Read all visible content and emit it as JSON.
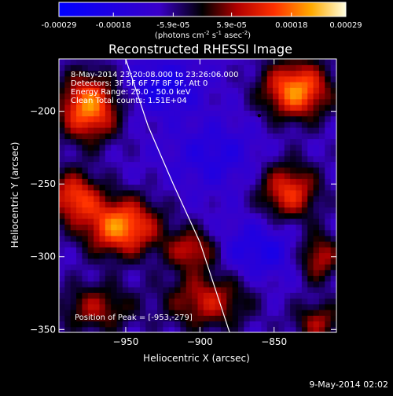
{
  "colorbar": {
    "ticks": [
      "-0.00029",
      "-0.00018",
      "-5.9e-05",
      "5.9e-05",
      "0.00018",
      "0.00029"
    ],
    "tick_values": [
      -0.00029,
      -0.00018,
      -5.9e-05,
      5.9e-05,
      0.00018,
      0.00029
    ],
    "units_main": "(photons cm",
    "units_sup1": "-2",
    "units_s": " s",
    "units_sup2": "-1",
    "units_asec": " asec",
    "units_sup3": "-2",
    "units_close": ")"
  },
  "chart_data": {
    "type": "heatmap",
    "title": "Reconstructed RHESSI Image",
    "xlabel": "Heliocentric X (arcsec)",
    "ylabel": "Heliocentric Y (arcsec)",
    "xlim": [
      -995,
      -808
    ],
    "ylim": [
      -352,
      -164
    ],
    "x_ticks": [
      -950,
      -900,
      -850
    ],
    "y_ticks": [
      -200,
      -250,
      -300,
      -350
    ],
    "annotations": [
      "8-May-2014 23:20:08.000 to 23:26:06.000",
      "Detectors: 3F 5F 6F 7F 8F 9F, Att 0",
      "Energy Range: 25.0 - 50.0 keV",
      "Clean    Total counts: 1.51E+04"
    ],
    "peak_label": "Position of Peak = [-953,-279]",
    "peak": {
      "x": -953,
      "y": -279
    },
    "limb_curve": [
      [
        -950,
        -164
      ],
      [
        -935,
        -210
      ],
      [
        -918,
        -250
      ],
      [
        -900,
        -290
      ],
      [
        -880,
        -352
      ]
    ],
    "sources": [
      {
        "x": -975,
        "y": -197,
        "intensity": 0.00029,
        "sx": 14,
        "sy": 16
      },
      {
        "x": -835,
        "y": -185,
        "intensity": 0.00029,
        "sx": 16,
        "sy": 14
      },
      {
        "x": -953,
        "y": -279,
        "intensity": 0.00029,
        "sx": 18,
        "sy": 14
      },
      {
        "x": -985,
        "y": -258,
        "intensity": 0.00022,
        "sx": 12,
        "sy": 12
      },
      {
        "x": -840,
        "y": -255,
        "intensity": 0.00022,
        "sx": 14,
        "sy": 14
      },
      {
        "x": -905,
        "y": -295,
        "intensity": 0.00018,
        "sx": 12,
        "sy": 10
      },
      {
        "x": -895,
        "y": -330,
        "intensity": 0.00018,
        "sx": 20,
        "sy": 14
      },
      {
        "x": -820,
        "y": -300,
        "intensity": 0.00018,
        "sx": 10,
        "sy": 12
      },
      {
        "x": -970,
        "y": -335,
        "intensity": 0.00015,
        "sx": 18,
        "sy": 12
      },
      {
        "x": -820,
        "y": -345,
        "intensity": 0.00015,
        "sx": 12,
        "sy": 10
      },
      {
        "x": -925,
        "y": -183,
        "intensity": -0.00012,
        "sx": 16,
        "sy": 12
      },
      {
        "x": -860,
        "y": -295,
        "intensity": -0.0001,
        "sx": 20,
        "sy": 14
      },
      {
        "x": -890,
        "y": -230,
        "intensity": -8e-05,
        "sx": 20,
        "sy": 16
      }
    ]
  },
  "timestamp": "9-May-2014 02:02"
}
